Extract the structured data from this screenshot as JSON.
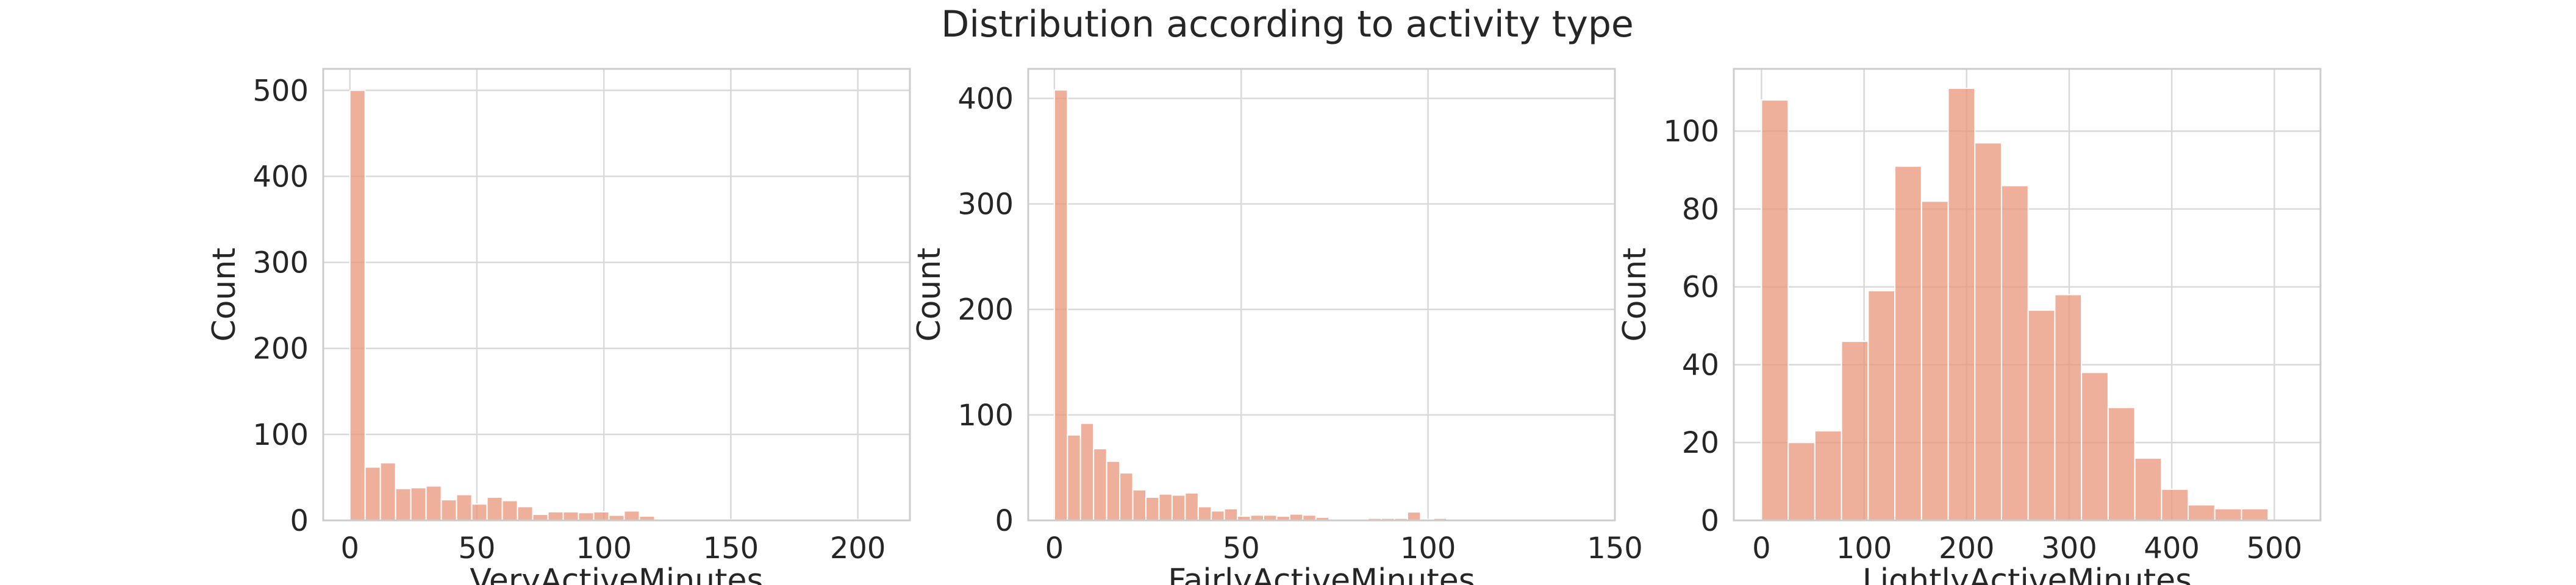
{
  "title": "Distribution according to activity type",
  "colors": {
    "bar": "#e9967a",
    "bar_edge": "#ffffff",
    "grid": "#d9d9d9",
    "spine": "#cccccc",
    "text": "#262626"
  },
  "chart_data": [
    {
      "type": "bar",
      "xlabel": "VeryActiveMinutes",
      "ylabel": "Count",
      "xlim": [
        -10.5,
        220.5
      ],
      "ylim": [
        0,
        525
      ],
      "xticks": [
        0,
        50,
        100,
        150,
        200
      ],
      "yticks": [
        0,
        100,
        200,
        300,
        400,
        500
      ],
      "grid": true,
      "bins": {
        "start": 0,
        "width": 6.0
      },
      "values": [
        500,
        62,
        67,
        37,
        38,
        40,
        24,
        30,
        19,
        27,
        23,
        16,
        7,
        10,
        10,
        9,
        10,
        6,
        11,
        5,
        0,
        0,
        0,
        0,
        0,
        1,
        0,
        0,
        1,
        0,
        0,
        1,
        0,
        1,
        0
      ]
    },
    {
      "type": "bar",
      "xlabel": "FairlyActiveMinutes",
      "ylabel": "Count",
      "xlim": [
        -7.0,
        150.0
      ],
      "ylim": [
        0,
        428
      ],
      "xticks": [
        0,
        50,
        100,
        150
      ],
      "yticks": [
        0,
        100,
        200,
        300,
        400
      ],
      "grid": true,
      "bins": {
        "start": 0,
        "width": 3.5
      },
      "values": [
        408,
        81,
        92,
        68,
        56,
        45,
        29,
        22,
        25,
        24,
        26,
        13,
        9,
        11,
        4,
        5,
        5,
        4,
        6,
        5,
        3,
        0,
        1,
        0,
        2,
        2,
        2,
        8,
        1,
        2,
        0,
        0,
        1,
        0,
        1,
        0,
        0,
        0,
        0,
        0,
        1
      ]
    },
    {
      "type": "bar",
      "xlabel": "LightlyActiveMinutes",
      "ylabel": "Count",
      "xlim": [
        -27,
        545
      ],
      "ylim": [
        0,
        116
      ],
      "xticks": [
        0,
        100,
        200,
        300,
        400,
        500
      ],
      "yticks": [
        0,
        20,
        40,
        60,
        80,
        100
      ],
      "grid": true,
      "bins": {
        "start": 0,
        "width": 26.0
      },
      "values": [
        108,
        20,
        23,
        46,
        59,
        91,
        82,
        111,
        97,
        86,
        54,
        58,
        38,
        29,
        16,
        8,
        4,
        3,
        3
      ]
    }
  ]
}
